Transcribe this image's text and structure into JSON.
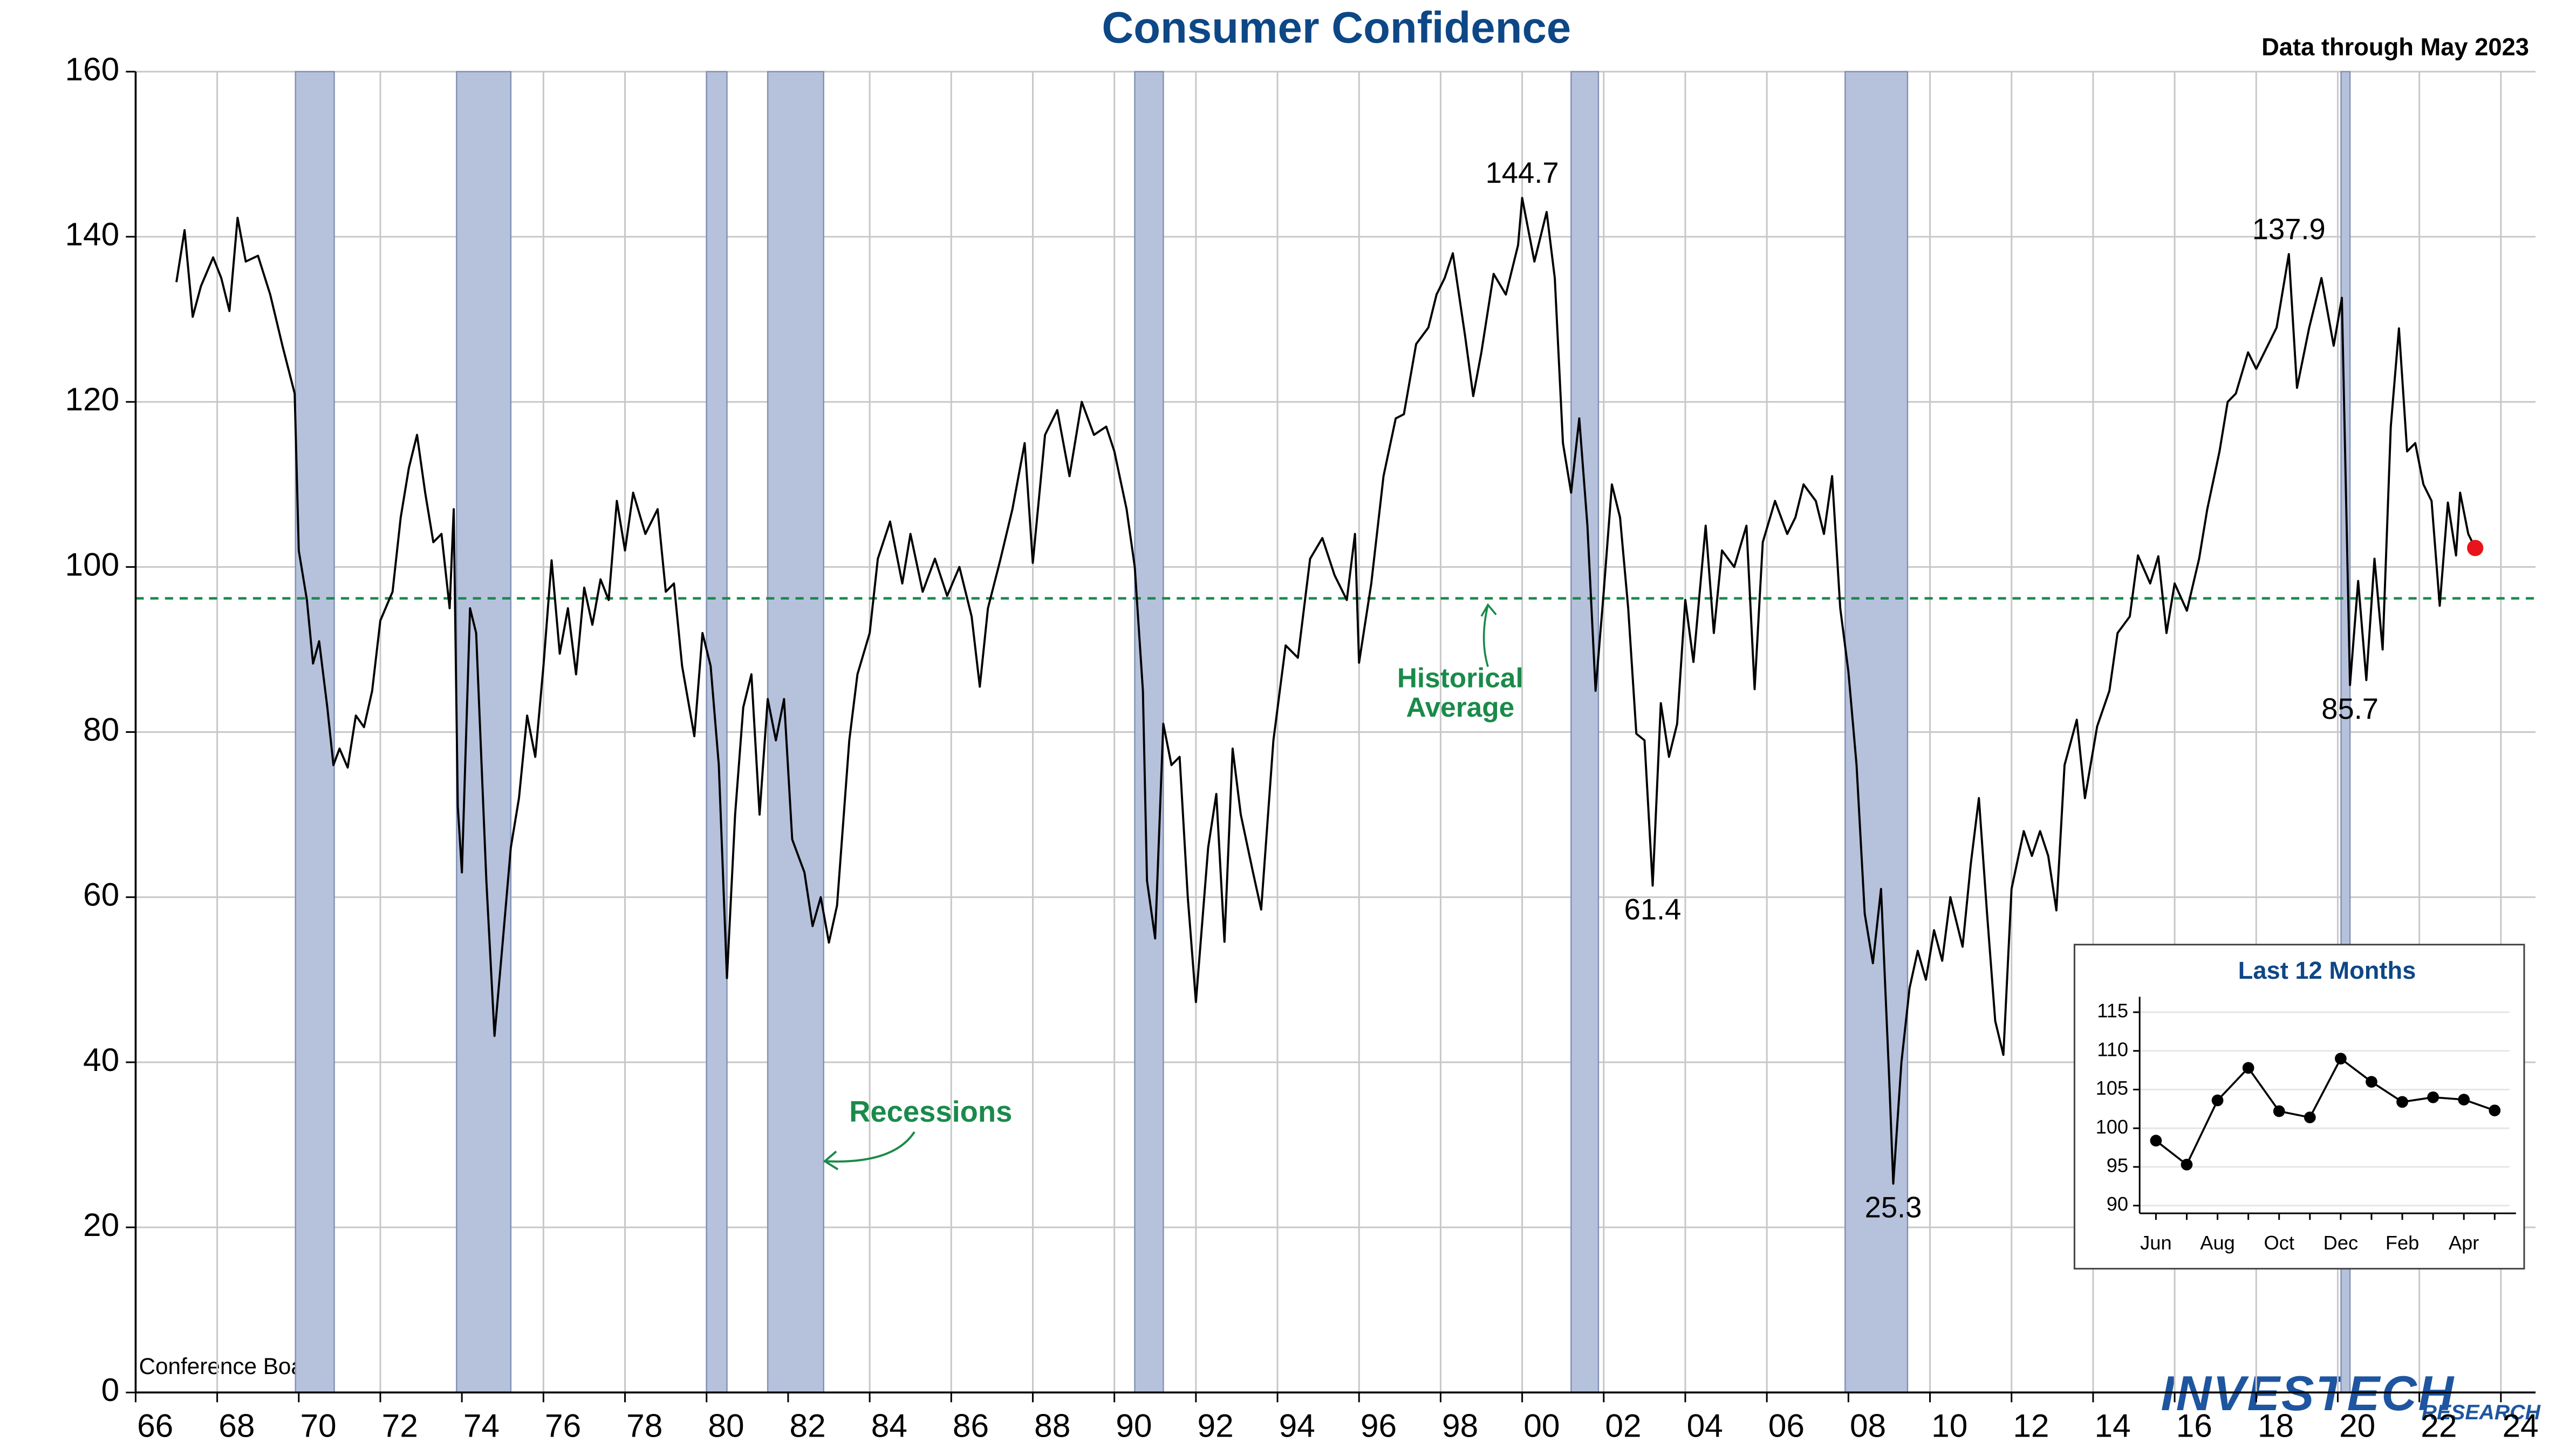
{
  "chart_data": [
    {
      "type": "line",
      "title": "Consumer Confidence",
      "subtitle": "Data through May 2023",
      "source": "Conference Board",
      "logo": {
        "name": "InvesTech",
        "tag": "Research"
      },
      "color": "#000000",
      "last_point_color": "#e8141b",
      "recession_color": "#b6c2dc",
      "recession_label": "Recessions",
      "recessions": [
        [
          1969.92,
          1970.87
        ],
        [
          1973.87,
          1975.2
        ],
        [
          1980.0,
          1980.5
        ],
        [
          1981.5,
          1982.87
        ],
        [
          1990.5,
          1991.2
        ],
        [
          2001.2,
          2001.87
        ],
        [
          2007.92,
          2009.45
        ],
        [
          2020.08,
          2020.3
        ]
      ],
      "average": {
        "value": 96.2,
        "label": "Historical Average",
        "color": "#1a8a4a"
      },
      "point_labels": [
        {
          "x": 2000.0,
          "y": 144.7,
          "position": "above"
        },
        {
          "x": 2003.2,
          "y": 61.4,
          "position": "below"
        },
        {
          "x": 2009.1,
          "y": 25.3,
          "position": "below"
        },
        {
          "x": 2018.8,
          "y": 137.9,
          "position": "above"
        },
        {
          "x": 2020.3,
          "y": 85.7,
          "position": "below"
        }
      ],
      "x": [
        1967.0,
        1967.2,
        1967.4,
        1967.6,
        1967.9,
        1968.1,
        1968.3,
        1968.5,
        1968.7,
        1969.0,
        1969.3,
        1969.6,
        1969.9,
        1970.0,
        1970.2,
        1970.35,
        1970.5,
        1970.7,
        1970.85,
        1971.0,
        1971.2,
        1971.4,
        1971.6,
        1971.8,
        1972.0,
        1972.3,
        1972.5,
        1972.7,
        1972.9,
        1973.1,
        1973.3,
        1973.5,
        1973.7,
        1973.8,
        1973.9,
        1974.0,
        1974.2,
        1974.35,
        1974.5,
        1974.6,
        1974.8,
        1975.0,
        1975.2,
        1975.4,
        1975.6,
        1975.8,
        1976.0,
        1976.2,
        1976.4,
        1976.6,
        1976.8,
        1977.0,
        1977.2,
        1977.4,
        1977.6,
        1977.8,
        1978.0,
        1978.2,
        1978.5,
        1978.8,
        1979.0,
        1979.2,
        1979.4,
        1979.7,
        1979.9,
        1980.1,
        1980.3,
        1980.5,
        1980.7,
        1980.9,
        1981.1,
        1981.3,
        1981.5,
        1981.7,
        1981.9,
        1982.1,
        1982.4,
        1982.6,
        1982.8,
        1983.0,
        1983.2,
        1983.5,
        1983.7,
        1984.0,
        1984.2,
        1984.5,
        1984.8,
        1985.0,
        1985.3,
        1985.6,
        1985.9,
        1986.2,
        1986.5,
        1986.7,
        1986.9,
        1987.2,
        1987.5,
        1987.8,
        1988.0,
        1988.3,
        1988.6,
        1988.9,
        1989.2,
        1989.5,
        1989.8,
        1990.0,
        1990.3,
        1990.5,
        1990.7,
        1990.8,
        1991.0,
        1991.2,
        1991.4,
        1991.6,
        1991.8,
        1992.0,
        1992.3,
        1992.5,
        1992.7,
        1992.9,
        1993.1,
        1993.4,
        1993.6,
        1993.9,
        1994.2,
        1994.5,
        1994.8,
        1995.1,
        1995.4,
        1995.7,
        1995.9,
        1996.0,
        1996.3,
        1996.6,
        1996.9,
        1997.1,
        1997.4,
        1997.7,
        1997.9,
        1998.1,
        1998.3,
        1998.6,
        1998.8,
        1999.0,
        1999.3,
        1999.6,
        1999.9,
        2000.0,
        2000.3,
        2000.6,
        2000.8,
        2001.0,
        2001.2,
        2001.4,
        2001.6,
        2001.8,
        2002.0,
        2002.2,
        2002.4,
        2002.6,
        2002.8,
        2003.0,
        2003.2,
        2003.4,
        2003.6,
        2003.8,
        2004.0,
        2004.2,
        2004.5,
        2004.7,
        2004.9,
        2005.2,
        2005.5,
        2005.7,
        2005.9,
        2006.2,
        2006.5,
        2006.7,
        2006.9,
        2007.2,
        2007.4,
        2007.6,
        2007.8,
        2008.0,
        2008.2,
        2008.4,
        2008.6,
        2008.8,
        2009.0,
        2009.1,
        2009.3,
        2009.5,
        2009.7,
        2009.9,
        2010.1,
        2010.3,
        2010.5,
        2010.8,
        2011.0,
        2011.2,
        2011.4,
        2011.6,
        2011.8,
        2012.0,
        2012.3,
        2012.5,
        2012.7,
        2012.9,
        2013.1,
        2013.3,
        2013.6,
        2013.8,
        2014.1,
        2014.4,
        2014.6,
        2014.9,
        2015.1,
        2015.4,
        2015.6,
        2015.8,
        2016.0,
        2016.3,
        2016.6,
        2016.8,
        2017.1,
        2017.3,
        2017.5,
        2017.8,
        2018.0,
        2018.3,
        2018.5,
        2018.8,
        2019.0,
        2019.3,
        2019.6,
        2019.9,
        2020.1,
        2020.3,
        2020.5,
        2020.7,
        2020.9,
        2021.1,
        2021.3,
        2021.5,
        2021.7,
        2021.9,
        2022.1,
        2022.3,
        2022.5,
        2022.7,
        2022.9,
        2023.0,
        2023.2,
        2023.37
      ],
      "values": [
        134.5,
        140.8,
        130.3,
        134,
        137.5,
        135,
        131,
        142.3,
        137,
        137.7,
        133,
        126.8,
        121,
        102,
        96,
        88.3,
        91,
        83,
        76,
        78,
        75.7,
        82,
        80.6,
        85,
        93.5,
        97,
        106,
        112,
        116,
        109,
        103,
        104,
        95,
        107,
        71,
        63,
        95,
        92,
        74,
        62,
        43.2,
        54.5,
        66,
        72,
        82,
        77,
        88,
        100.8,
        89.5,
        95,
        87,
        97.5,
        93,
        98.5,
        96,
        108,
        102,
        109,
        104,
        107,
        97,
        98,
        88,
        79.5,
        92,
        88,
        76,
        50.2,
        70,
        83,
        87,
        70,
        84,
        79,
        84,
        67,
        63,
        56.5,
        60,
        54.5,
        59,
        79,
        87,
        92,
        101,
        105.5,
        98,
        104,
        97,
        101,
        96.5,
        100,
        94,
        85.5,
        95,
        100.8,
        107,
        115,
        100.5,
        116,
        119,
        111,
        120,
        116,
        117,
        114,
        107,
        100,
        85,
        62,
        55,
        81,
        76,
        77,
        60,
        47.3,
        66,
        72.5,
        54.6,
        78,
        70,
        63,
        58.5,
        79,
        90.5,
        89,
        101,
        103.5,
        99,
        96,
        104,
        88.4,
        98,
        111,
        118,
        118.5,
        127,
        129,
        133,
        135,
        138,
        128,
        120.7,
        126,
        135.5,
        133,
        139,
        144.7,
        137,
        143,
        135,
        115,
        109,
        118,
        105,
        85,
        97,
        110,
        106,
        95,
        79.8,
        79,
        61.4,
        83.5,
        77,
        81,
        96,
        88.5,
        105,
        92,
        102,
        100,
        105,
        85.2,
        103,
        108,
        104,
        106,
        110,
        108,
        104,
        111,
        95,
        87.3,
        76,
        58,
        52,
        61,
        38,
        25.3,
        40,
        49,
        53.5,
        50,
        56,
        52.3,
        60,
        54,
        64,
        72,
        58,
        45,
        40.9,
        61,
        68,
        65,
        68,
        65,
        58.4,
        76,
        81.5,
        72,
        80.7,
        85,
        92,
        94,
        101.4,
        98,
        101.3,
        92,
        98,
        94.7,
        101,
        107,
        114,
        120,
        121,
        126,
        124,
        127,
        129,
        137.9,
        121.7,
        129,
        135,
        126.8,
        132.6,
        85.7,
        98.3,
        86.3,
        101,
        90,
        117,
        128.9,
        114,
        115,
        110,
        108,
        95.3,
        107.8,
        101.4,
        109,
        104,
        102.3
      ],
      "xlim": [
        1966,
        2024.85
      ],
      "xticks": [
        {
          "value": 1966,
          "label": "66"
        },
        {
          "value": 1968,
          "label": "68"
        },
        {
          "value": 1970,
          "label": "70"
        },
        {
          "value": 1972,
          "label": "72"
        },
        {
          "value": 1974,
          "label": "74"
        },
        {
          "value": 1976,
          "label": "76"
        },
        {
          "value": 1978,
          "label": "78"
        },
        {
          "value": 1980,
          "label": "80"
        },
        {
          "value": 1982,
          "label": "82"
        },
        {
          "value": 1984,
          "label": "84"
        },
        {
          "value": 1986,
          "label": "86"
        },
        {
          "value": 1988,
          "label": "88"
        },
        {
          "value": 1990,
          "label": "90"
        },
        {
          "value": 1992,
          "label": "92"
        },
        {
          "value": 1994,
          "label": "94"
        },
        {
          "value": 1996,
          "label": "96"
        },
        {
          "value": 1998,
          "label": "98"
        },
        {
          "value": 2000,
          "label": "00"
        },
        {
          "value": 2002,
          "label": "02"
        },
        {
          "value": 2004,
          "label": "04"
        },
        {
          "value": 2006,
          "label": "06"
        },
        {
          "value": 2008,
          "label": "08"
        },
        {
          "value": 2010,
          "label": "10"
        },
        {
          "value": 2012,
          "label": "12"
        },
        {
          "value": 2014,
          "label": "14"
        },
        {
          "value": 2016,
          "label": "16"
        },
        {
          "value": 2018,
          "label": "18"
        },
        {
          "value": 2020,
          "label": "20"
        },
        {
          "value": 2022,
          "label": "22"
        },
        {
          "value": 2024,
          "label": "24"
        }
      ],
      "ylim": [
        0,
        160
      ],
      "yticks": [
        0,
        20,
        40,
        60,
        80,
        100,
        120,
        140,
        160
      ],
      "grid": true
    },
    {
      "type": "line",
      "title": "Last 12 Months",
      "color": "#000000",
      "categories": [
        "Jun",
        null,
        "Aug",
        null,
        "Oct",
        null,
        "Dec",
        null,
        "Feb",
        null,
        "Apr",
        null
      ],
      "values": [
        98.4,
        95.3,
        103.6,
        107.8,
        102.2,
        101.4,
        109.0,
        106.0,
        103.4,
        104.0,
        103.7,
        102.3
      ],
      "ylim": [
        89,
        117
      ],
      "yticks": [
        90,
        95,
        100,
        105,
        110,
        115
      ],
      "grid": true
    }
  ]
}
